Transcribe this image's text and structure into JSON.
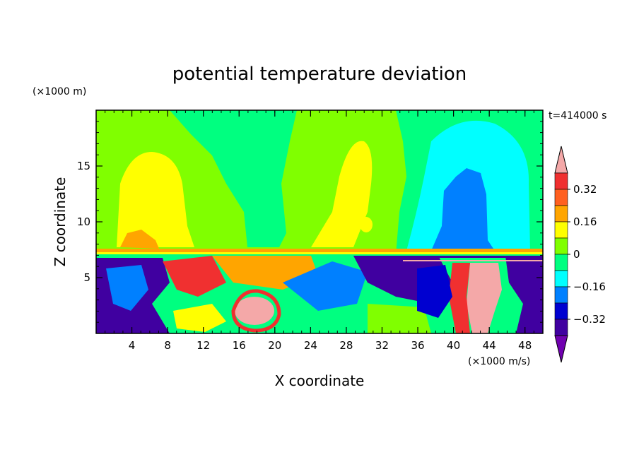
{
  "chart_data": {
    "type": "heatmap",
    "title": "potential temperature deviation",
    "xlabel": "X coordinate",
    "ylabel": "Z coordinate",
    "x_unit": "(×1000 m/s)",
    "y_unit": "(×1000 m)",
    "time_label": "t=414000 s",
    "xlim": [
      0,
      50
    ],
    "ylim": [
      0,
      20
    ],
    "x_ticks": [
      4,
      8,
      12,
      16,
      20,
      24,
      28,
      32,
      36,
      40,
      44,
      48
    ],
    "y_ticks": [
      5,
      10,
      15
    ],
    "colorbar": {
      "levels": [
        -0.4,
        -0.32,
        -0.24,
        -0.16,
        -0.08,
        0,
        0.08,
        0.16,
        0.24,
        0.32,
        0.4
      ],
      "labels": [
        "0.32",
        "0.16",
        "0",
        "−0.16",
        "−0.32"
      ],
      "label_values": [
        0.32,
        0.16,
        0,
        -0.16,
        -0.32
      ],
      "colors": {
        "over": "#f4a8a8",
        "bands_high_to_low": [
          "#f03030",
          "#ff6020",
          "#ffa500",
          "#ffff00",
          "#80ff00",
          "#00ff80",
          "#00ffff",
          "#0080ff",
          "#0000d0",
          "#4000a0"
        ],
        "under": "#7000b0"
      }
    }
  }
}
